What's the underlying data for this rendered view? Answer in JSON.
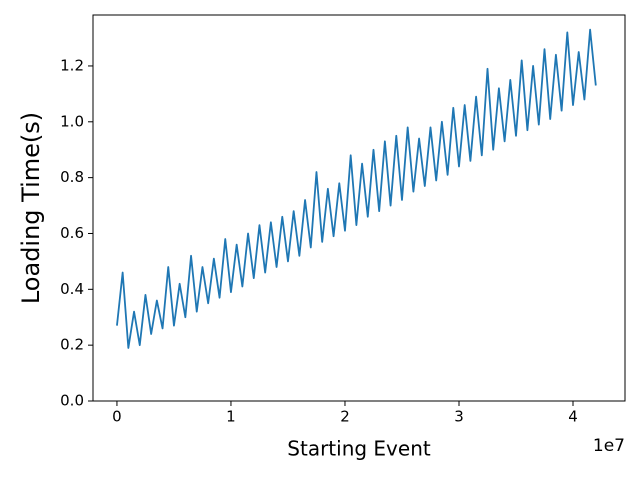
{
  "chart_data": {
    "type": "line",
    "x_label": "Starting Event",
    "y_label": "Loading Time(s)",
    "x_offset_label": "1e7",
    "x": [
      0,
      500000,
      1000000,
      1500000,
      2000000,
      2500000,
      3000000,
      3500000,
      4000000,
      4500000,
      5000000,
      5500000,
      6000000,
      6500000,
      7000000,
      7500000,
      8000000,
      8500000,
      9000000,
      9500000,
      10000000,
      10500000,
      11000000,
      11500000,
      12000000,
      12500000,
      13000000,
      13500000,
      14000000,
      14500000,
      15000000,
      15500000,
      16000000,
      16500000,
      17000000,
      17500000,
      18000000,
      18500000,
      19000000,
      19500000,
      20000000,
      20500000,
      21000000,
      21500000,
      22000000,
      22500000,
      23000000,
      23500000,
      24000000,
      24500000,
      25000000,
      25500000,
      26000000,
      26500000,
      27000000,
      27500000,
      28000000,
      28500000,
      29000000,
      29500000,
      30000000,
      30500000,
      31000000,
      31500000,
      32000000,
      32500000,
      33000000,
      33500000,
      34000000,
      34500000,
      35000000,
      35500000,
      36000000,
      36500000,
      37000000,
      37500000,
      38000000,
      38500000,
      39000000,
      39500000,
      40000000,
      40500000,
      41000000,
      41500000,
      42000000
    ],
    "series": [
      {
        "color": "#1f77b4",
        "values": [
          0.27,
          0.46,
          0.19,
          0.32,
          0.2,
          0.38,
          0.24,
          0.36,
          0.26,
          0.48,
          0.27,
          0.42,
          0.3,
          0.52,
          0.32,
          0.48,
          0.35,
          0.51,
          0.37,
          0.58,
          0.39,
          0.56,
          0.41,
          0.6,
          0.44,
          0.63,
          0.46,
          0.64,
          0.48,
          0.66,
          0.5,
          0.68,
          0.52,
          0.72,
          0.55,
          0.82,
          0.57,
          0.76,
          0.59,
          0.78,
          0.61,
          0.88,
          0.63,
          0.85,
          0.66,
          0.9,
          0.68,
          0.93,
          0.7,
          0.95,
          0.72,
          0.98,
          0.75,
          0.94,
          0.77,
          0.98,
          0.79,
          1.0,
          0.81,
          1.05,
          0.84,
          1.06,
          0.86,
          1.09,
          0.88,
          1.19,
          0.9,
          1.12,
          0.93,
          1.15,
          0.95,
          1.22,
          0.97,
          1.2,
          0.99,
          1.26,
          1.01,
          1.24,
          1.04,
          1.32,
          1.06,
          1.25,
          1.08,
          1.33,
          1.13
        ]
      }
    ],
    "xlim": [
      -2100000,
      44560000
    ],
    "xticks": [
      {
        "value": 0,
        "label": "0"
      },
      {
        "value": 10000000,
        "label": "1"
      },
      {
        "value": 20000000,
        "label": "2"
      },
      {
        "value": 30000000,
        "label": "3"
      },
      {
        "value": 40000000,
        "label": "4"
      }
    ],
    "ylim": [
      0,
      1.3825
    ],
    "yticks": [
      {
        "value": 0,
        "label": "0.0"
      },
      0.2,
      0.4,
      0.6,
      0.8,
      {
        "value": 1,
        "label": "1.0"
      },
      1.2
    ],
    "grid": false
  }
}
